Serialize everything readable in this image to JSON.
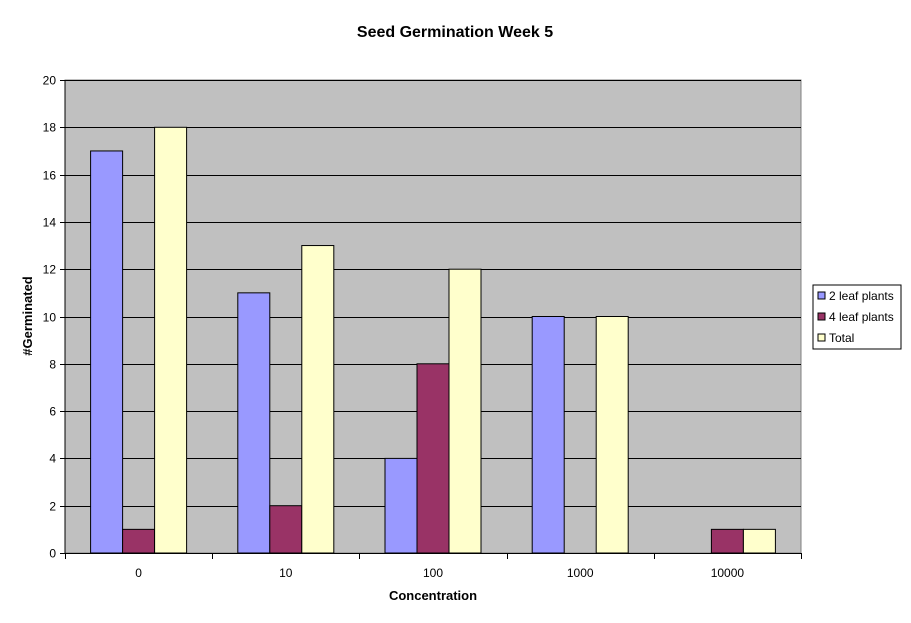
{
  "chart_data": {
    "type": "bar",
    "title": "Seed Germination Week 5",
    "xlabel": "Concentration",
    "ylabel": "#Germinated",
    "categories": [
      "0",
      "10",
      "100",
      "1000",
      "10000"
    ],
    "ylim": [
      0,
      20
    ],
    "ytick_step": 2,
    "grid": true,
    "legend_position": "right",
    "plot_background": "#c0c0c0",
    "series": [
      {
        "name": "2 leaf plants",
        "color": "#9999ff",
        "values": [
          17,
          11,
          4,
          10,
          0
        ]
      },
      {
        "name": "4 leaf plants",
        "color": "#993366",
        "values": [
          1,
          2,
          8,
          0,
          1
        ]
      },
      {
        "name": "Total",
        "color": "#ffffcc",
        "values": [
          18,
          13,
          12,
          10,
          1
        ]
      }
    ]
  }
}
